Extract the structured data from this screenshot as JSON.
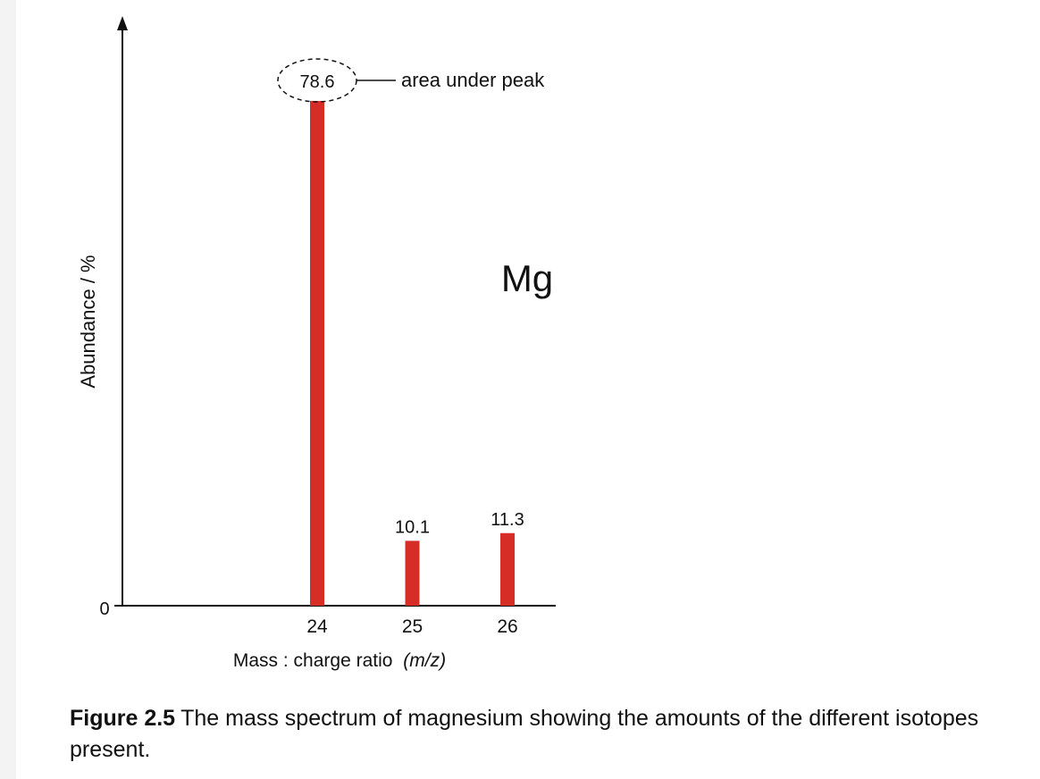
{
  "chart_data": {
    "type": "bar",
    "categories": [
      "24",
      "25",
      "26"
    ],
    "values": [
      78.6,
      10.1,
      11.3
    ],
    "data_labels": [
      "78.6",
      "10.1",
      "11.3"
    ],
    "title": "",
    "xlabel": "Mass : charge ratio",
    "xlabel_var": "(m/z)",
    "ylabel": "Abundance / %",
    "y_tick": "0",
    "ylim": [
      0,
      100
    ],
    "element_label": "Mg",
    "annotation": "area under peak",
    "annotated_index": 0,
    "grid": false,
    "bar_color": "#d62e26"
  },
  "caption": {
    "label": "Figure 2.5",
    "text": "The mass spectrum of magnesium showing the amounts of the different isotopes present."
  }
}
